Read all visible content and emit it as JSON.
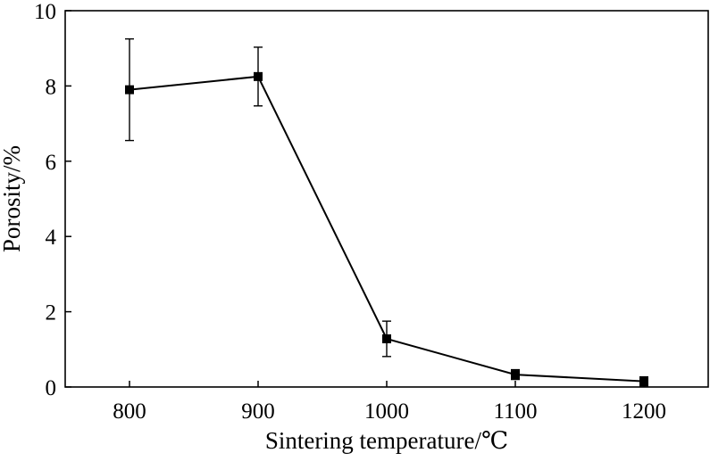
{
  "chart_data": {
    "type": "line",
    "title": "",
    "xlabel": "Sintering temperature/℃",
    "ylabel": "Porosity/%",
    "xlim": [
      750,
      1250
    ],
    "ylim": [
      0,
      10
    ],
    "x_ticks": [
      "800",
      "900",
      "1000",
      "1100",
      "1200"
    ],
    "y_ticks": [
      "0",
      "2",
      "4",
      "6",
      "8",
      "10"
    ],
    "grid": false,
    "legend": "none",
    "series": [
      {
        "x": [
          800,
          900,
          1000,
          1100,
          1200
        ],
        "y": [
          7.9,
          8.25,
          1.28,
          0.33,
          0.15
        ],
        "error": [
          1.35,
          0.78,
          0.47,
          0.13,
          0.12
        ],
        "marker": "square",
        "color": "#000000"
      }
    ]
  }
}
